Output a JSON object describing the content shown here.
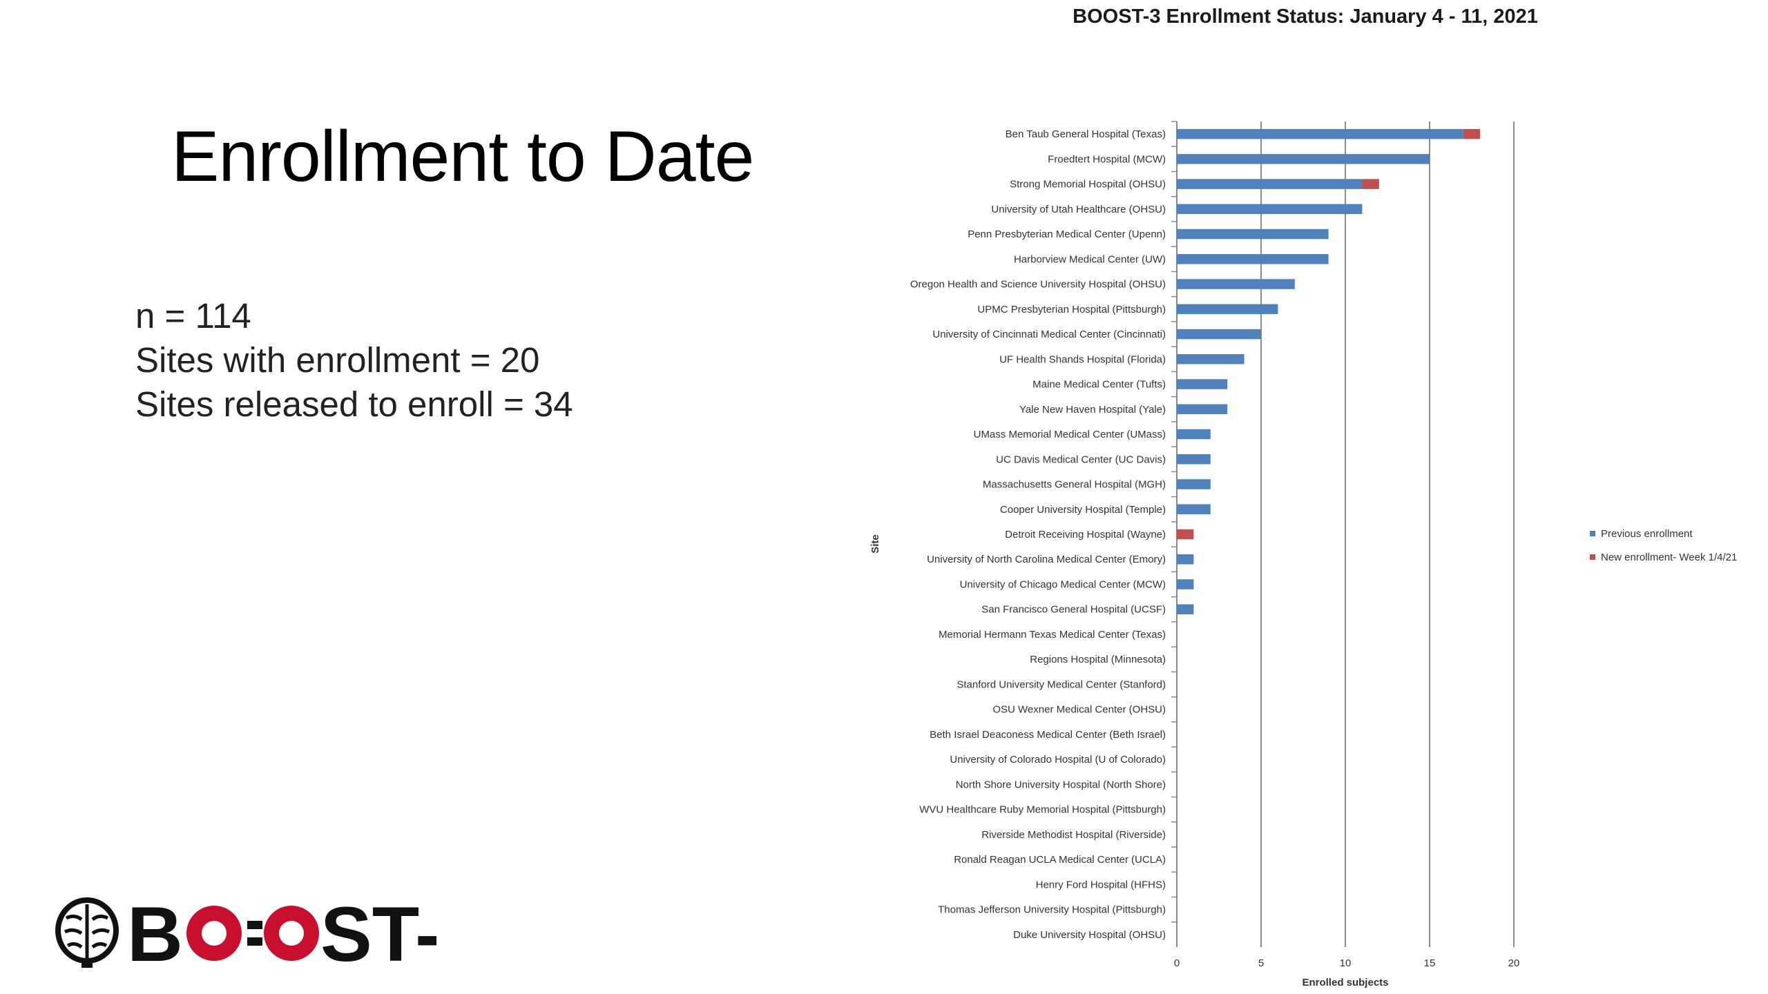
{
  "slide": {
    "title": "Enrollment to Date",
    "stats": [
      "n = 114",
      "Sites with enrollment = 20",
      "Sites released to enroll = 34"
    ],
    "logo_text": "BOOST-3",
    "logo_icon": "brain-icon"
  },
  "colors": {
    "previous": "#4F81BD",
    "new": "#C0504D",
    "axis": "#888888",
    "grid": "#8c8c8c",
    "logo_red": "#c8102e"
  },
  "chart_data": {
    "type": "bar",
    "orientation": "horizontal",
    "stacked": true,
    "title": "BOOST-3 Enrollment Status: January 4 - 11, 2021",
    "xlabel": "Enrolled subjects",
    "ylabel": "Site",
    "xlim": [
      0,
      20
    ],
    "xticks": [
      "0",
      "5",
      "10",
      "15",
      "20"
    ],
    "grid": "vertical",
    "legend_position": "right",
    "categories": [
      "Ben Taub General Hospital (Texas)",
      "Froedtert Hospital (MCW)",
      "Strong Memorial Hospital (OHSU)",
      "University of Utah Healthcare (OHSU)",
      "Penn Presbyterian Medical Center (Upenn)",
      "Harborview Medical Center (UW)",
      "Oregon Health and Science University Hospital (OHSU)",
      "UPMC Presbyterian Hospital (Pittsburgh)",
      "University of Cincinnati Medical Center (Cincinnati)",
      "UF Health Shands Hospital (Florida)",
      "Maine Medical Center (Tufts)",
      "Yale New Haven Hospital (Yale)",
      "UMass Memorial Medical Center (UMass)",
      "UC Davis Medical Center (UC Davis)",
      "Massachusetts General Hospital (MGH)",
      "Cooper University Hospital (Temple)",
      "Detroit Receiving Hospital (Wayne)",
      "University of North Carolina Medical Center (Emory)",
      "University of Chicago Medical Center (MCW)",
      "San Francisco General Hospital (UCSF)",
      "Memorial Hermann Texas Medical Center (Texas)",
      "Regions Hospital (Minnesota)",
      "Stanford University Medical Center (Stanford)",
      "OSU Wexner Medical Center (OHSU)",
      "Beth Israel Deaconess Medical Center (Beth Israel)",
      "University of Colorado Hospital (U of Colorado)",
      "North Shore University Hospital (North Shore)",
      "WVU Healthcare Ruby Memorial Hospital (Pittsburgh)",
      "Riverside Methodist Hospital (Riverside)",
      "Ronald Reagan UCLA Medical Center (UCLA)",
      "Henry Ford Hospital (HFHS)",
      "Thomas Jefferson University Hospital (Pittsburgh)",
      "Duke University Hospital (OHSU)"
    ],
    "series": [
      {
        "name": "Previous enrollment",
        "values": [
          17,
          15,
          11,
          11,
          9,
          9,
          7,
          6,
          5,
          4,
          3,
          3,
          2,
          2,
          2,
          2,
          0,
          1,
          1,
          1,
          0,
          0,
          0,
          0,
          0,
          0,
          0,
          0,
          0,
          0,
          0,
          0,
          0
        ]
      },
      {
        "name": "New enrollment- Week 1/4/21",
        "values": [
          1,
          0,
          1,
          0,
          0,
          0,
          0,
          0,
          0,
          0,
          0,
          0,
          0,
          0,
          0,
          0,
          1,
          0,
          0,
          0,
          0,
          0,
          0,
          0,
          0,
          0,
          0,
          0,
          0,
          0,
          0,
          0,
          0
        ]
      }
    ]
  }
}
